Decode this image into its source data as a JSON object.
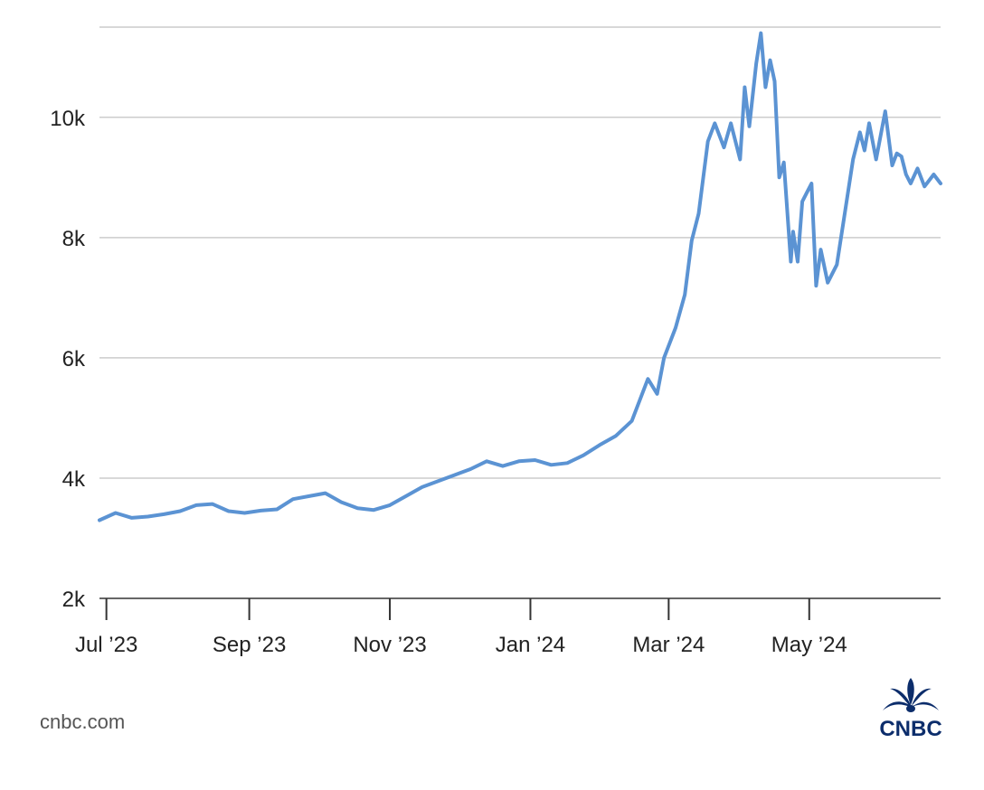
{
  "chart_data": {
    "type": "line",
    "title": "",
    "xlabel": "",
    "ylabel": "",
    "x_range": [
      "2023-06-28",
      "2024-06-27"
    ],
    "ylim": [
      2000,
      11500
    ],
    "y_ticks": [
      2000,
      4000,
      6000,
      8000,
      10000
    ],
    "y_tick_labels": [
      "2k",
      "4k",
      "6k",
      "8k",
      "10k"
    ],
    "x_ticks": [
      {
        "date": "2023-07-01",
        "label": "Jul ’23"
      },
      {
        "date": "2023-09-01",
        "label": "Sep ’23"
      },
      {
        "date": "2023-11-01",
        "label": "Nov ’23"
      },
      {
        "date": "2024-01-01",
        "label": "Jan ’24"
      },
      {
        "date": "2024-03-01",
        "label": "Mar ’24"
      },
      {
        "date": "2024-05-01",
        "label": "May ’24"
      }
    ],
    "grid": "horizontal",
    "line_color": "#5b93d3",
    "series": [
      {
        "points": [
          [
            "2023-06-28",
            3300
          ],
          [
            "2023-07-05",
            3420
          ],
          [
            "2023-07-12",
            3340
          ],
          [
            "2023-07-19",
            3360
          ],
          [
            "2023-07-26",
            3400
          ],
          [
            "2023-08-02",
            3450
          ],
          [
            "2023-08-09",
            3550
          ],
          [
            "2023-08-16",
            3570
          ],
          [
            "2023-08-23",
            3450
          ],
          [
            "2023-08-30",
            3420
          ],
          [
            "2023-09-06",
            3460
          ],
          [
            "2023-09-13",
            3480
          ],
          [
            "2023-09-20",
            3650
          ],
          [
            "2023-09-27",
            3700
          ],
          [
            "2023-10-04",
            3750
          ],
          [
            "2023-10-11",
            3600
          ],
          [
            "2023-10-18",
            3500
          ],
          [
            "2023-10-25",
            3470
          ],
          [
            "2023-11-01",
            3550
          ],
          [
            "2023-11-08",
            3700
          ],
          [
            "2023-11-15",
            3850
          ],
          [
            "2023-11-22",
            3950
          ],
          [
            "2023-11-29",
            4050
          ],
          [
            "2023-12-06",
            4150
          ],
          [
            "2023-12-13",
            4280
          ],
          [
            "2023-12-20",
            4200
          ],
          [
            "2023-12-27",
            4280
          ],
          [
            "2024-01-03",
            4300
          ],
          [
            "2024-01-10",
            4220
          ],
          [
            "2024-01-17",
            4250
          ],
          [
            "2024-01-24",
            4380
          ],
          [
            "2024-01-31",
            4550
          ],
          [
            "2024-02-07",
            4700
          ],
          [
            "2024-02-14",
            4950
          ],
          [
            "2024-02-21",
            5650
          ],
          [
            "2024-02-25",
            5400
          ],
          [
            "2024-02-28",
            6000
          ],
          [
            "2024-03-04",
            6500
          ],
          [
            "2024-03-08",
            7050
          ],
          [
            "2024-03-11",
            7950
          ],
          [
            "2024-03-14",
            8400
          ],
          [
            "2024-03-18",
            9600
          ],
          [
            "2024-03-21",
            9900
          ],
          [
            "2024-03-25",
            9500
          ],
          [
            "2024-03-28",
            9900
          ],
          [
            "2024-04-01",
            9300
          ],
          [
            "2024-04-03",
            10500
          ],
          [
            "2024-04-05",
            9850
          ],
          [
            "2024-04-08",
            10900
          ],
          [
            "2024-04-10",
            11400
          ],
          [
            "2024-04-12",
            10500
          ],
          [
            "2024-04-14",
            10950
          ],
          [
            "2024-04-16",
            10600
          ],
          [
            "2024-04-18",
            9000
          ],
          [
            "2024-04-20",
            9250
          ],
          [
            "2024-04-23",
            7600
          ],
          [
            "2024-04-24",
            8100
          ],
          [
            "2024-04-26",
            7600
          ],
          [
            "2024-04-28",
            8600
          ],
          [
            "2024-05-02",
            8900
          ],
          [
            "2024-05-04",
            7200
          ],
          [
            "2024-05-06",
            7800
          ],
          [
            "2024-05-09",
            7250
          ],
          [
            "2024-05-13",
            7550
          ],
          [
            "2024-05-16",
            8300
          ],
          [
            "2024-05-20",
            9300
          ],
          [
            "2024-05-23",
            9750
          ],
          [
            "2024-05-25",
            9450
          ],
          [
            "2024-05-27",
            9900
          ],
          [
            "2024-05-30",
            9300
          ],
          [
            "2024-06-03",
            10100
          ],
          [
            "2024-06-06",
            9200
          ],
          [
            "2024-06-08",
            9400
          ],
          [
            "2024-06-10",
            9350
          ],
          [
            "2024-06-12",
            9050
          ],
          [
            "2024-06-14",
            8900
          ],
          [
            "2024-06-17",
            9150
          ],
          [
            "2024-06-20",
            8850
          ],
          [
            "2024-06-24",
            9050
          ],
          [
            "2024-06-27",
            8900
          ]
        ]
      }
    ]
  },
  "footer": {
    "source": "cnbc.com",
    "logo_text": "CNBC"
  },
  "colors": {
    "line": "#5b93d3",
    "grid": "#cccccc",
    "axis": "#333333",
    "logo": "#0c2d6b"
  }
}
